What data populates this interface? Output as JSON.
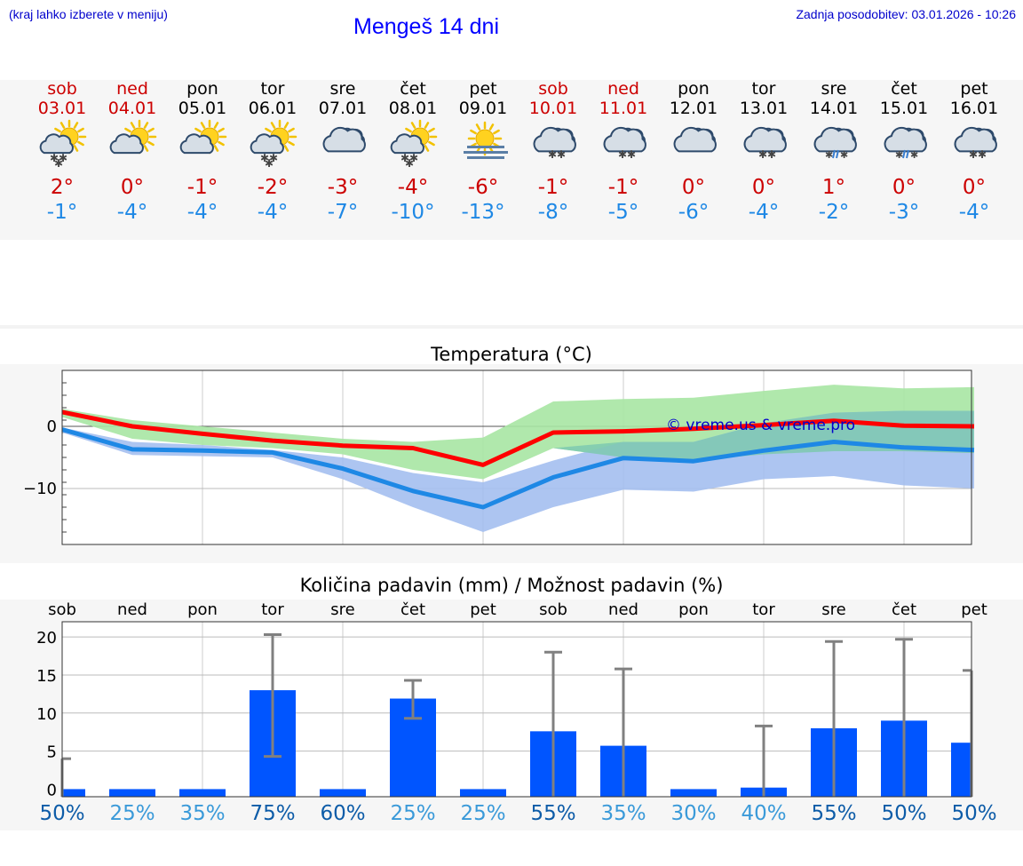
{
  "header": {
    "hint": "(kraj lahko izberete v meniju)",
    "title": "Mengeš 14 dni",
    "updated": "Zadnja posodobitev: 03.01.2026 - 10:26"
  },
  "days": [
    {
      "name": "sob",
      "date": "03.01",
      "weekend": true,
      "icon": "partly-sunny-snow-icon",
      "max": "2°",
      "min": "-1°"
    },
    {
      "name": "ned",
      "date": "04.01",
      "weekend": true,
      "icon": "partly-sunny-icon",
      "max": "0°",
      "min": "-4°"
    },
    {
      "name": "pon",
      "date": "05.01",
      "weekend": false,
      "icon": "partly-sunny-icon",
      "max": "-1°",
      "min": "-4°"
    },
    {
      "name": "tor",
      "date": "06.01",
      "weekend": false,
      "icon": "partly-sunny-snow-icon",
      "max": "-2°",
      "min": "-4°"
    },
    {
      "name": "sre",
      "date": "07.01",
      "weekend": false,
      "icon": "cloudy-icon",
      "max": "-3°",
      "min": "-7°"
    },
    {
      "name": "čet",
      "date": "08.01",
      "weekend": false,
      "icon": "partly-sunny-snow-icon",
      "max": "-4°",
      "min": "-10°"
    },
    {
      "name": "pet",
      "date": "09.01",
      "weekend": false,
      "icon": "sun-fog-icon",
      "max": "-6°",
      "min": "-13°"
    },
    {
      "name": "sob",
      "date": "10.01",
      "weekend": true,
      "icon": "cloudy-snow-icon",
      "max": "-1°",
      "min": "-8°"
    },
    {
      "name": "ned",
      "date": "11.01",
      "weekend": true,
      "icon": "cloudy-snow-icon",
      "max": "-1°",
      "min": "-5°"
    },
    {
      "name": "pon",
      "date": "12.01",
      "weekend": false,
      "icon": "cloudy-icon",
      "max": "0°",
      "min": "-6°"
    },
    {
      "name": "tor",
      "date": "13.01",
      "weekend": false,
      "icon": "cloudy-snow-icon",
      "max": "0°",
      "min": "-4°"
    },
    {
      "name": "sre",
      "date": "14.01",
      "weekend": false,
      "icon": "cloudy-sleet-icon",
      "max": "1°",
      "min": "-2°"
    },
    {
      "name": "čet",
      "date": "15.01",
      "weekend": false,
      "icon": "cloudy-sleet-icon",
      "max": "0°",
      "min": "-3°"
    },
    {
      "name": "pet",
      "date": "16.01",
      "weekend": false,
      "icon": "cloudy-snow-icon",
      "max": "0°",
      "min": "-4°"
    }
  ],
  "colors": {
    "max_line": "#ff0000",
    "min_line": "#1e88e5",
    "max_band": "#a7e6a3",
    "min_band": "#a4bff0",
    "overlap_band": "#7ec9b0",
    "bar": "#0055ff",
    "err": "#808080",
    "chance_high": "#0d5ca8",
    "chance_low": "#3a9ad9",
    "weekend": "#cc0000",
    "weekday": "#000000",
    "watermark": "#0000cc"
  },
  "chart_data": [
    {
      "type": "line",
      "title": "Temperatura (°C)",
      "xlabel": "",
      "ylabel": "",
      "ylim": [
        -19,
        9
      ],
      "yticks": [
        0,
        -10
      ],
      "ytick_labels": [
        "0",
        "−10"
      ],
      "watermark": "© vreme.us & vreme.pro",
      "x": [
        0,
        1,
        2,
        3,
        4,
        5,
        6,
        7,
        8,
        9,
        10,
        11,
        12,
        13
      ],
      "series": [
        {
          "name": "max",
          "values": [
            2.3,
            0,
            -1.2,
            -2.3,
            -3.1,
            -3.5,
            -6.2,
            -1,
            -0.8,
            -0.4,
            0.2,
            0.9,
            0.1,
            0
          ]
        },
        {
          "name": "min",
          "values": [
            -0.5,
            -3.7,
            -3.9,
            -4.2,
            -6.8,
            -10.4,
            -13,
            -8.2,
            -5.1,
            -5.6,
            -3.9,
            -2.5,
            -3.4,
            -3.8
          ]
        }
      ],
      "max_band": {
        "upper": [
          2.8,
          1,
          0,
          -1,
          -2,
          -2.5,
          -1.8,
          4,
          4.4,
          4.6,
          5.7,
          6.7,
          6.1,
          6.3
        ],
        "lower": [
          1.5,
          -2,
          -3,
          -3.5,
          -4.5,
          -7,
          -8.5,
          -3.5,
          -5,
          -5.5,
          -4.5,
          -4,
          -4,
          -4.3
        ]
      },
      "min_band": {
        "upper": [
          -0.2,
          -2.5,
          -3,
          -3.8,
          -5,
          -7.5,
          -9,
          -5.5,
          -2.5,
          -2.5,
          0.5,
          2.2,
          2.5,
          2.5
        ],
        "lower": [
          -1,
          -4.6,
          -4.8,
          -5,
          -8.5,
          -13,
          -17,
          -13,
          -10.2,
          -10.5,
          -8.5,
          -8,
          -9.5,
          -10
        ]
      }
    },
    {
      "type": "bar",
      "title": "Količina padavin (mm) / Možnost padavin (%)",
      "categories": [
        "sob",
        "ned",
        "pon",
        "tor",
        "sre",
        "čet",
        "pet",
        "sob",
        "ned",
        "pon",
        "tor",
        "sre",
        "čet",
        "pet"
      ],
      "ylim": [
        -1,
        22
      ],
      "yticks": [
        20,
        15,
        10,
        5,
        0
      ],
      "values": [
        0,
        0,
        0,
        13,
        0,
        11.9,
        0,
        7.6,
        5.7,
        0,
        0.2,
        8,
        9,
        6.1
      ],
      "err_low": [
        0,
        0,
        0,
        4.3,
        0,
        9.3,
        0,
        0,
        0,
        0,
        0,
        0,
        0,
        0
      ],
      "err_high": [
        4,
        0,
        0,
        20.3,
        0,
        14.3,
        0,
        18,
        15.8,
        0,
        8.3,
        19.4,
        19.7,
        15.6
      ],
      "chance": [
        "50%",
        "25%",
        "35%",
        "75%",
        "60%",
        "25%",
        "25%",
        "55%",
        "35%",
        "30%",
        "40%",
        "55%",
        "50%",
        "50%"
      ]
    }
  ]
}
